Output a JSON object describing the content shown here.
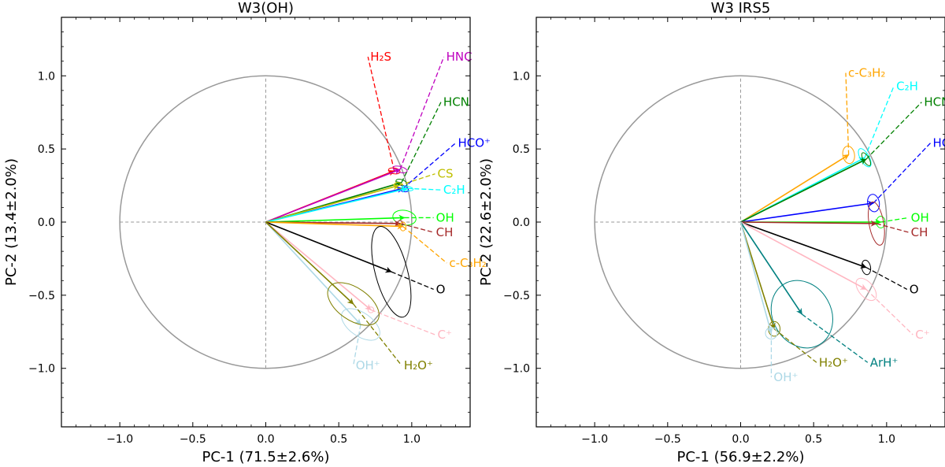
{
  "chart_data": [
    {
      "type": "scatter",
      "title": "W3(OH)",
      "xlabel": "PC-1 (71.5±2.6%)",
      "ylabel": "PC-2 (13.4±2.0%)",
      "xlim": [
        -1.4,
        1.4
      ],
      "ylim": [
        -1.4,
        1.4
      ],
      "xticks": [
        -1.0,
        -0.5,
        0.0,
        0.5,
        1.0
      ],
      "yticks": [
        -1.0,
        -0.5,
        0.0,
        0.5,
        1.0
      ],
      "tick_labels_x": [
        "−1.0",
        "−0.5",
        "0.0",
        "0.5",
        "1.0"
      ],
      "tick_labels_y": [
        "−1.0",
        "−0.5",
        "0.0",
        "0.5",
        "1.0"
      ],
      "grid": false,
      "unit_circle": true,
      "vectors": [
        {
          "label": "H2S",
          "display": "H₂S",
          "x": 0.88,
          "y": 0.35,
          "color": "#ff0000",
          "err": [
            0.02,
            0.04,
            80
          ],
          "label_xy": [
            0.7,
            1.13
          ]
        },
        {
          "label": "HNC",
          "display": "HNC",
          "x": 0.92,
          "y": 0.36,
          "color": "#bf00bf",
          "err": [
            0.02,
            0.05,
            75
          ],
          "label_xy": [
            1.22,
            1.13
          ]
        },
        {
          "label": "HCN",
          "display": "HCN",
          "x": 0.93,
          "y": 0.27,
          "color": "#008000",
          "err": [
            0.02,
            0.04,
            70
          ],
          "label_xy": [
            1.2,
            0.82
          ]
        },
        {
          "label": "HCO+",
          "display": "HCO⁺",
          "x": 0.94,
          "y": 0.23,
          "color": "#0000ff",
          "err": [
            0.02,
            0.04,
            70
          ],
          "label_xy": [
            1.3,
            0.54
          ]
        },
        {
          "label": "CS",
          "display": "CS",
          "x": 0.91,
          "y": 0.25,
          "color": "#bfbf00",
          "err": [
            0.02,
            0.03,
            70
          ],
          "label_xy": [
            1.16,
            0.33
          ]
        },
        {
          "label": "C2H",
          "display": "C₂H",
          "x": 0.97,
          "y": 0.23,
          "color": "#00ffff",
          "err": [
            0.015,
            0.04,
            80
          ],
          "label_xy": [
            1.2,
            0.22
          ]
        },
        {
          "label": "OH",
          "display": "OH",
          "x": 0.95,
          "y": 0.03,
          "color": "#00ff00",
          "err": [
            0.05,
            0.08,
            80
          ],
          "label_xy": [
            1.15,
            0.03
          ]
        },
        {
          "label": "CH",
          "display": "CH",
          "x": 0.92,
          "y": -0.01,
          "color": "#a52a2a",
          "err": [
            0.02,
            0.02,
            0
          ],
          "label_xy": [
            1.15,
            -0.07
          ]
        },
        {
          "label": "c-C3H2",
          "display": "c-C₃H₂",
          "x": 0.94,
          "y": -0.03,
          "color": "#ffa500",
          "err": [
            0.02,
            0.03,
            0
          ],
          "label_xy": [
            1.24,
            -0.28
          ]
        },
        {
          "label": "O",
          "display": "O",
          "x": 0.86,
          "y": -0.34,
          "color": "#000000",
          "err": [
            0.11,
            0.32,
            15
          ],
          "label_xy": [
            1.15,
            -0.46
          ]
        },
        {
          "label": "C+",
          "display": "C⁺",
          "x": 0.72,
          "y": -0.6,
          "color": "#ffb6c1",
          "err": [
            0.02,
            0.02,
            0
          ],
          "label_xy": [
            1.16,
            -0.77
          ]
        },
        {
          "label": "OH+",
          "display": "OH⁺",
          "x": 0.65,
          "y": -0.7,
          "color": "#add8e6",
          "err": [
            0.08,
            0.15,
            55
          ],
          "label_xy": [
            0.6,
            -0.98
          ]
        },
        {
          "label": "H2O+",
          "display": "H₂O⁺",
          "x": 0.6,
          "y": -0.56,
          "color": "#808000",
          "err": [
            0.11,
            0.2,
            55
          ],
          "label_xy": [
            0.93,
            -0.98
          ]
        }
      ]
    },
    {
      "type": "scatter",
      "title": "W3 IRS5",
      "xlabel": "PC-1 (56.9±2.2%)",
      "ylabel": "PC-2 (22.6±2.0%)",
      "xlim": [
        -1.4,
        1.4
      ],
      "ylim": [
        -1.4,
        1.4
      ],
      "xticks": [
        -1.0,
        -0.5,
        0.0,
        0.5,
        1.0
      ],
      "yticks": [
        -1.0,
        -0.5,
        0.0,
        0.5,
        1.0
      ],
      "tick_labels_x": [
        "−1.0",
        "−0.5",
        "0.0",
        "0.5",
        "1.0"
      ],
      "tick_labels_y": [
        "−1.0",
        "−0.5",
        "0.0",
        "0.5",
        "1.0"
      ],
      "grid": false,
      "unit_circle": true,
      "vectors": [
        {
          "label": "c-C3H2",
          "display": "c-C₃H₂",
          "x": 0.74,
          "y": 0.46,
          "color": "#ffa500",
          "err": [
            0.04,
            0.06,
            10
          ],
          "label_xy": [
            0.72,
            1.02
          ]
        },
        {
          "label": "C2H",
          "display": "C₂H",
          "x": 0.85,
          "y": 0.44,
          "color": "#00ffff",
          "err": [
            0.03,
            0.07,
            30
          ],
          "label_xy": [
            1.05,
            0.93
          ]
        },
        {
          "label": "HCN",
          "display": "HCN",
          "x": 0.86,
          "y": 0.43,
          "color": "#008000",
          "err": [
            0.02,
            0.05,
            30
          ],
          "label_xy": [
            1.24,
            0.82
          ]
        },
        {
          "label": "HCO+",
          "display": "HCO⁺",
          "x": 0.91,
          "y": 0.13,
          "color": "#0000ff",
          "err": [
            0.04,
            0.06,
            10
          ],
          "label_xy": [
            1.3,
            0.54
          ]
        },
        {
          "label": "OH",
          "display": "OH",
          "x": 0.96,
          "y": 0.0,
          "color": "#00ff00",
          "err": [
            0.03,
            0.04,
            0
          ],
          "label_xy": [
            1.15,
            0.03
          ]
        },
        {
          "label": "CH",
          "display": "CH",
          "x": 0.93,
          "y": -0.01,
          "color": "#a52a2a",
          "err": [
            0.05,
            0.15,
            10
          ],
          "label_xy": [
            1.15,
            -0.07
          ]
        },
        {
          "label": "O",
          "display": "O",
          "x": 0.86,
          "y": -0.31,
          "color": "#000000",
          "err": [
            0.03,
            0.05,
            10
          ],
          "label_xy": [
            1.14,
            -0.46
          ]
        },
        {
          "label": "C+",
          "display": "C⁺",
          "x": 0.86,
          "y": -0.46,
          "color": "#ffb6c1",
          "err": [
            0.05,
            0.09,
            40
          ],
          "label_xy": [
            1.18,
            -0.77
          ]
        },
        {
          "label": "ArH+",
          "display": "ArH⁺",
          "x": 0.42,
          "y": -0.63,
          "color": "#008080",
          "err": [
            0.2,
            0.24,
            30
          ],
          "label_xy": [
            0.87,
            -0.96
          ]
        },
        {
          "label": "H2O+",
          "display": "H₂O⁺",
          "x": 0.23,
          "y": -0.73,
          "color": "#808000",
          "err": [
            0.04,
            0.05,
            0
          ],
          "label_xy": [
            0.52,
            -0.96
          ]
        },
        {
          "label": "OH+",
          "display": "OH⁺",
          "x": 0.21,
          "y": -0.76,
          "color": "#add8e6",
          "err": [
            0.04,
            0.04,
            0
          ],
          "label_xy": [
            0.21,
            -1.06
          ]
        }
      ]
    }
  ]
}
